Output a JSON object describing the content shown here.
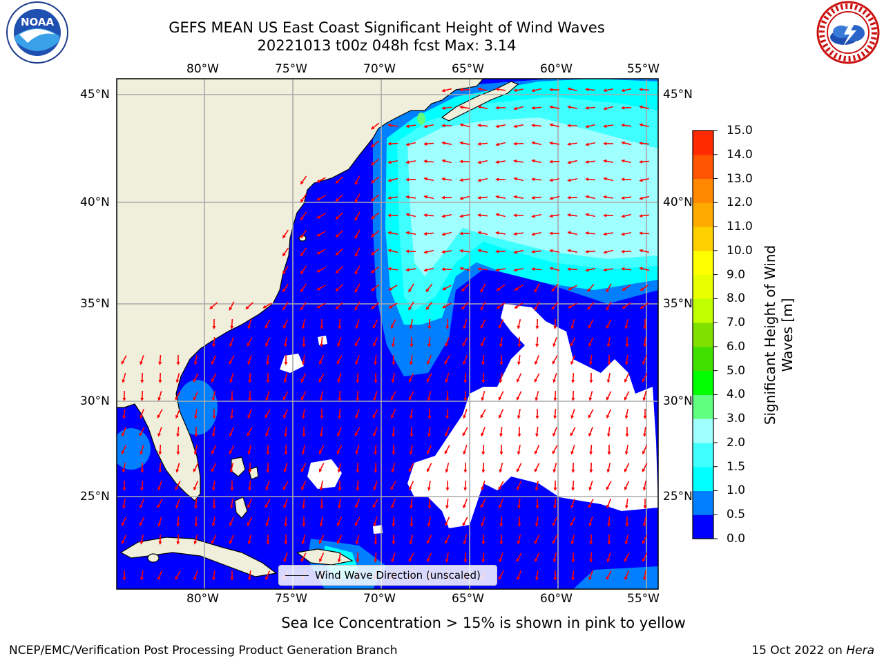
{
  "title_line1": "GEFS MEAN US East Coast Significant Height of Wind Waves",
  "title_line2": "20221013 t00z 048h fcst    Max: 3.14",
  "logos": {
    "left": {
      "name": "NOAA",
      "text": "NOAA"
    },
    "right": {
      "name": "National Weather Service"
    }
  },
  "map": {
    "lon_labels": [
      "80°W",
      "75°W",
      "70°W",
      "65°W",
      "60°W",
      "55°W"
    ],
    "lat_labels": [
      "45°N",
      "40°N",
      "35°N",
      "30°N",
      "25°N"
    ],
    "land_color": "#efefdb",
    "ocean_color": "#0000ff",
    "ice_color": "#ffffff"
  },
  "legend": {
    "label": "Wind Wave Direction (unscaled)",
    "color": "#000000"
  },
  "colorbar": {
    "label": "Significant Height of Wind Waves [m]",
    "ticks": [
      "15.0",
      "14.0",
      "13.0",
      "12.0",
      "11.0",
      "10.0",
      "9.0",
      "8.0",
      "7.0",
      "6.0",
      "5.0",
      "4.0",
      "3.0",
      "2.0",
      "1.5",
      "1.0",
      "0.5",
      "0.0"
    ],
    "colors_bottom_to_top": [
      "#0000ff",
      "#0080ff",
      "#00ffff",
      "#40ffff",
      "#a0ffff",
      "#60ff80",
      "#00ff00",
      "#40e000",
      "#80e000",
      "#c0ff00",
      "#e8ff00",
      "#ffff00",
      "#ffd000",
      "#ffaa00",
      "#ff8800",
      "#ff5500",
      "#ff2a00",
      "#ff0000"
    ]
  },
  "arrow_color": "#ff0000",
  "footer": {
    "note": "Sea Ice Concentration > 15% is shown in pink to yellow",
    "left": "NCEP/EMC/Verification Post Processing Product Generation Branch",
    "right_prefix": "15 Oct 2022 on ",
    "right_italic": "Hera"
  }
}
